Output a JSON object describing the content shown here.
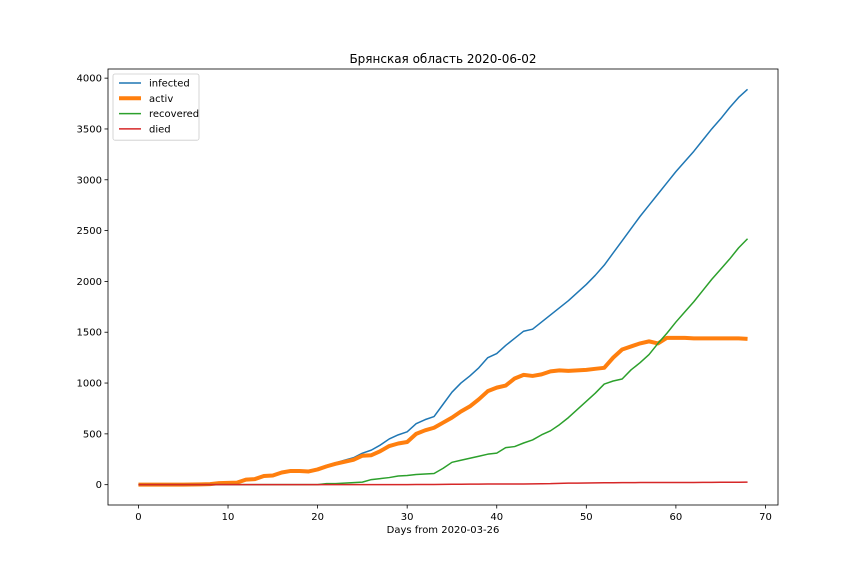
{
  "chart_data": {
    "type": "line",
    "title": "Брянская область 2020-06-02",
    "xlabel": "Days from 2020-03-26",
    "ylabel": "",
    "xlim": [
      -3.4,
      71.4
    ],
    "ylim": [
      -200,
      4090
    ],
    "xticks": [
      0,
      10,
      20,
      30,
      40,
      50,
      60,
      70
    ],
    "yticks": [
      0,
      500,
      1000,
      1500,
      2000,
      2500,
      3000,
      3500,
      4000
    ],
    "grid": false,
    "legend_position": "top-left",
    "x": [
      0,
      1,
      2,
      3,
      4,
      5,
      6,
      7,
      8,
      9,
      10,
      11,
      12,
      13,
      14,
      15,
      16,
      17,
      18,
      19,
      20,
      21,
      22,
      23,
      24,
      25,
      26,
      27,
      28,
      29,
      30,
      31,
      32,
      33,
      34,
      35,
      36,
      37,
      38,
      39,
      40,
      41,
      42,
      43,
      44,
      45,
      46,
      47,
      48,
      49,
      50,
      51,
      52,
      53,
      54,
      55,
      56,
      57,
      58,
      59,
      60,
      61,
      62,
      63,
      64,
      65,
      66,
      67,
      68
    ],
    "series": [
      {
        "name": "infected",
        "color": "#1f77b4",
        "width": 1.5,
        "values": [
          0,
          0,
          0,
          0,
          0,
          1,
          2,
          3,
          5,
          15,
          18,
          20,
          50,
          55,
          85,
          90,
          120,
          135,
          135,
          130,
          150,
          190,
          215,
          240,
          265,
          310,
          340,
          390,
          450,
          490,
          520,
          600,
          640,
          670,
          790,
          910,
          1000,
          1070,
          1150,
          1250,
          1290,
          1370,
          1440,
          1510,
          1530,
          1600,
          1670,
          1740,
          1810,
          1890,
          1970,
          2060,
          2160,
          2280,
          2400,
          2520,
          2640,
          2750,
          2860,
          2970,
          3080,
          3180,
          3280,
          3390,
          3500,
          3600,
          3710,
          3810,
          3890
        ]
      },
      {
        "name": "activ",
        "color": "#ff7f0e",
        "width": 4,
        "values": [
          0,
          0,
          0,
          0,
          0,
          1,
          2,
          3,
          5,
          15,
          18,
          20,
          50,
          55,
          85,
          90,
          120,
          135,
          135,
          130,
          150,
          180,
          205,
          225,
          245,
          285,
          290,
          330,
          380,
          405,
          420,
          500,
          535,
          560,
          610,
          660,
          720,
          770,
          840,
          920,
          955,
          975,
          1045,
          1080,
          1070,
          1085,
          1115,
          1125,
          1120,
          1125,
          1130,
          1140,
          1150,
          1250,
          1330,
          1360,
          1390,
          1410,
          1390,
          1445,
          1445,
          1445,
          1440,
          1440,
          1440,
          1440,
          1440,
          1440,
          1435
        ]
      },
      {
        "name": "recovered",
        "color": "#2ca02c",
        "width": 1.5,
        "values": [
          0,
          0,
          0,
          0,
          0,
          0,
          0,
          0,
          0,
          0,
          0,
          0,
          0,
          0,
          0,
          0,
          0,
          0,
          0,
          0,
          0,
          10,
          10,
          15,
          20,
          25,
          50,
          60,
          70,
          85,
          90,
          100,
          105,
          110,
          160,
          220,
          240,
          260,
          280,
          300,
          310,
          365,
          375,
          410,
          440,
          490,
          530,
          590,
          660,
          740,
          820,
          900,
          990,
          1020,
          1040,
          1130,
          1200,
          1280,
          1390,
          1490,
          1600,
          1700,
          1800,
          1910,
          2020,
          2120,
          2220,
          2330,
          2420
        ]
      },
      {
        "name": "died",
        "color": "#d62728",
        "width": 1.5,
        "values": [
          0,
          0,
          0,
          0,
          0,
          0,
          0,
          0,
          0,
          0,
          0,
          0,
          0,
          0,
          0,
          0,
          0,
          0,
          0,
          0,
          0,
          0,
          0,
          0,
          0,
          0,
          0,
          0,
          0,
          0,
          0,
          2,
          2,
          2,
          3,
          4,
          4,
          5,
          5,
          6,
          6,
          6,
          6,
          7,
          8,
          9,
          10,
          13,
          15,
          15,
          16,
          18,
          19,
          19,
          20,
          20,
          21,
          21,
          22,
          22,
          22,
          22,
          22,
          23,
          23,
          24,
          24,
          24,
          25
        ]
      }
    ]
  }
}
